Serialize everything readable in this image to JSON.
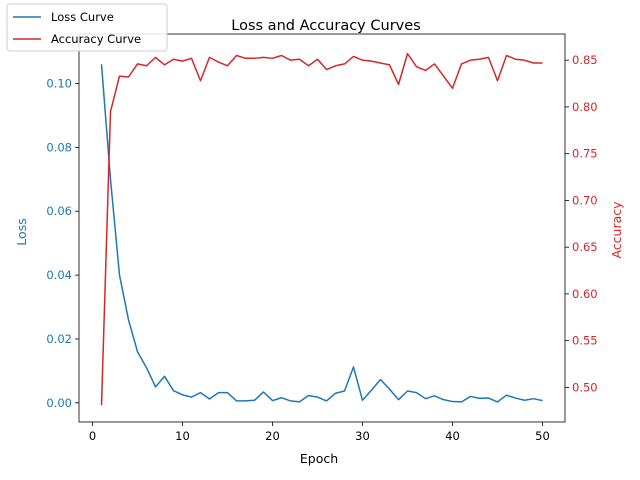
{
  "chart_data": {
    "type": "line",
    "title": "Loss and Accuracy Curves",
    "xlabel": "Epoch",
    "ylabel_left": "Loss",
    "ylabel_right": "Accuracy",
    "xlim": [
      -1.5,
      52.5
    ],
    "ylim_left": [
      -0.006,
      0.1155
    ],
    "ylim_right": [
      0.463,
      0.878
    ],
    "x_ticks": [
      0,
      10,
      20,
      30,
      40,
      50
    ],
    "y_ticks_left": [
      0.0,
      0.02,
      0.04,
      0.06,
      0.08,
      0.1
    ],
    "y_ticks_right": [
      0.5,
      0.55,
      0.6,
      0.65,
      0.7,
      0.75,
      0.8,
      0.85
    ],
    "grid": false,
    "legend_position": "top-left",
    "x": [
      1,
      2,
      3,
      4,
      5,
      6,
      7,
      8,
      9,
      10,
      11,
      12,
      13,
      14,
      15,
      16,
      17,
      18,
      19,
      20,
      21,
      22,
      23,
      24,
      25,
      26,
      27,
      28,
      29,
      30,
      31,
      32,
      33,
      34,
      35,
      36,
      37,
      38,
      39,
      40,
      41,
      42,
      43,
      44,
      45,
      46,
      47,
      48,
      49,
      50
    ],
    "series": [
      {
        "name": "Loss Curve",
        "axis": "left",
        "color": "#1f77b4",
        "values": [
          0.106,
          0.07,
          0.04,
          0.026,
          0.016,
          0.011,
          0.005,
          0.0083,
          0.0038,
          0.0025,
          0.0018,
          0.0032,
          0.0012,
          0.0032,
          0.0032,
          0.0006,
          0.0006,
          0.0008,
          0.0034,
          0.0007,
          0.0016,
          0.0006,
          0.0003,
          0.0023,
          0.0018,
          0.0006,
          0.003,
          0.0037,
          0.0112,
          0.0008,
          0.004,
          0.0073,
          0.0043,
          0.001,
          0.0037,
          0.0032,
          0.0013,
          0.0022,
          0.001,
          0.0004,
          0.0003,
          0.002,
          0.0014,
          0.0015,
          0.0003,
          0.0024,
          0.0015,
          0.0008,
          0.0013,
          0.0007
        ]
      },
      {
        "name": "Accuracy Curve",
        "axis": "right",
        "color": "#d62728",
        "values": [
          0.481,
          0.795,
          0.833,
          0.832,
          0.846,
          0.844,
          0.853,
          0.845,
          0.851,
          0.849,
          0.852,
          0.828,
          0.853,
          0.848,
          0.844,
          0.855,
          0.852,
          0.852,
          0.853,
          0.852,
          0.855,
          0.85,
          0.851,
          0.844,
          0.851,
          0.84,
          0.844,
          0.846,
          0.854,
          0.85,
          0.849,
          0.847,
          0.845,
          0.824,
          0.857,
          0.843,
          0.839,
          0.846,
          0.833,
          0.82,
          0.846,
          0.85,
          0.851,
          0.853,
          0.828,
          0.855,
          0.851,
          0.85,
          0.847,
          0.847
        ]
      }
    ]
  }
}
